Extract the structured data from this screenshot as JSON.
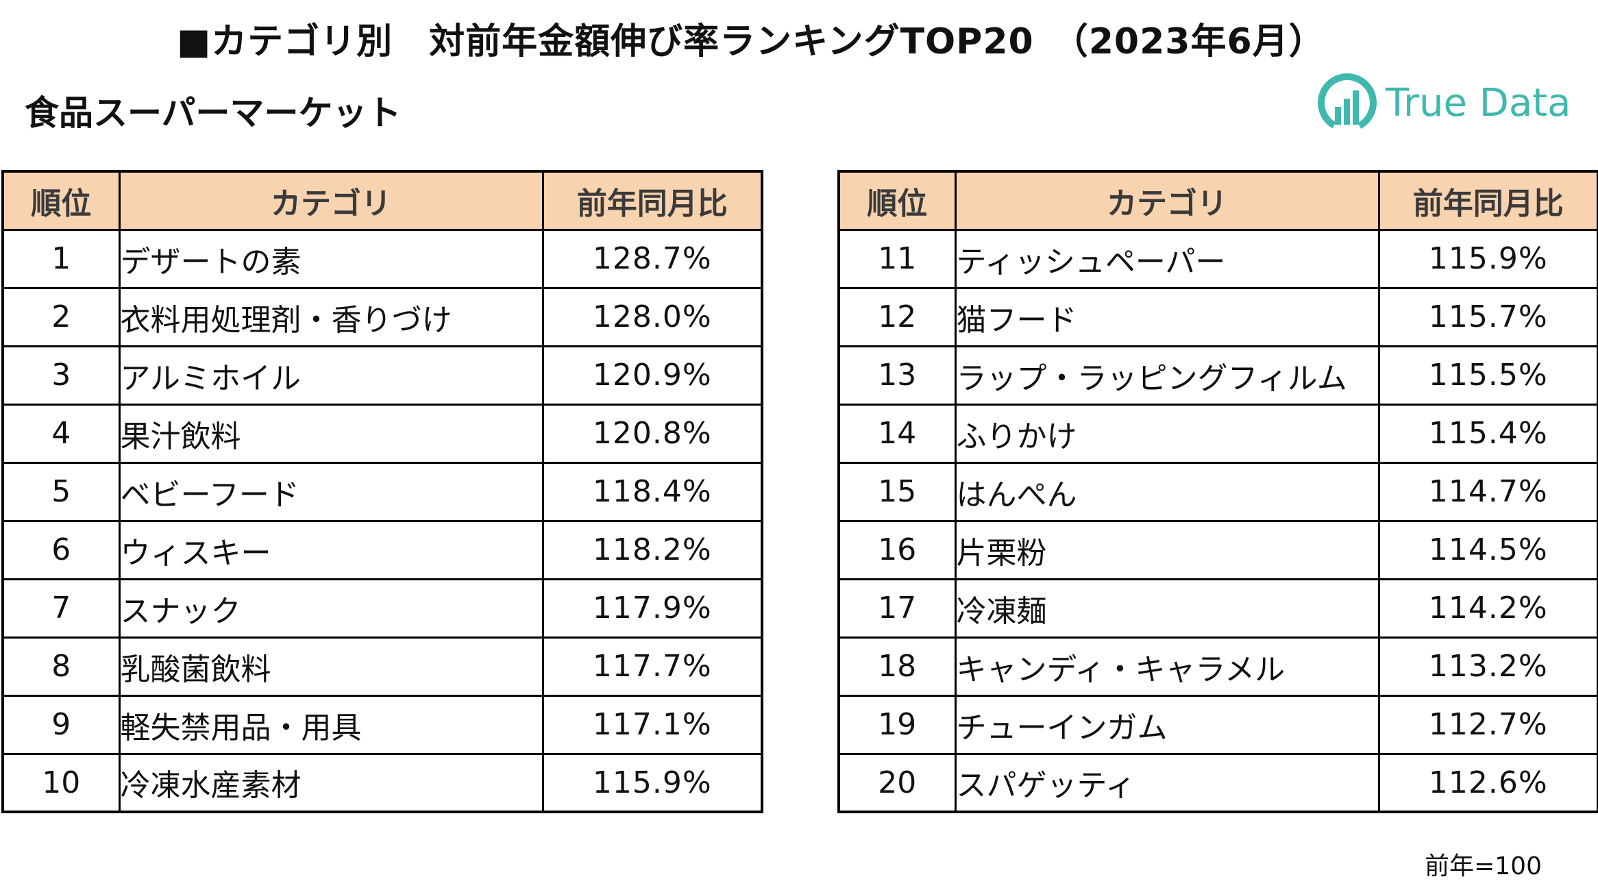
{
  "title": "■カテゴリ別　対前年金額伸び率ランキングTOP20　（2023年6月）",
  "subtitle": "食品スーパーマーケット",
  "logo_text": "True Data",
  "logo_color": "#3fb8ad",
  "header_color": "#f7d3b0",
  "columns": {
    "rank": "順位",
    "category": "カテゴリ",
    "rate": "前年同月比"
  },
  "left_rows": [
    {
      "rank": "1",
      "category": "デザートの素",
      "rate": "128.7%"
    },
    {
      "rank": "2",
      "category": "衣料用処理剤・香りづけ",
      "rate": "128.0%"
    },
    {
      "rank": "3",
      "category": "アルミホイル",
      "rate": "120.9%"
    },
    {
      "rank": "4",
      "category": "果汁飲料",
      "rate": "120.8%"
    },
    {
      "rank": "5",
      "category": "ベビーフード",
      "rate": "118.4%"
    },
    {
      "rank": "6",
      "category": "ウィスキー",
      "rate": "118.2%"
    },
    {
      "rank": "7",
      "category": "スナック",
      "rate": "117.9%"
    },
    {
      "rank": "8",
      "category": "乳酸菌飲料",
      "rate": "117.7%"
    },
    {
      "rank": "9",
      "category": "軽失禁用品・用具",
      "rate": "117.1%"
    },
    {
      "rank": "10",
      "category": "冷凍水産素材",
      "rate": "115.9%"
    }
  ],
  "right_rows": [
    {
      "rank": "11",
      "category": "ティッシュペーパー",
      "rate": "115.9%"
    },
    {
      "rank": "12",
      "category": "猫フード",
      "rate": "115.7%"
    },
    {
      "rank": "13",
      "category": "ラップ・ラッピングフィルム",
      "rate": "115.5%"
    },
    {
      "rank": "14",
      "category": "ふりかけ",
      "rate": "115.4%"
    },
    {
      "rank": "15",
      "category": "はんぺん",
      "rate": "114.7%"
    },
    {
      "rank": "16",
      "category": "片栗粉",
      "rate": "114.5%"
    },
    {
      "rank": "17",
      "category": "冷凍麺",
      "rate": "114.2%"
    },
    {
      "rank": "18",
      "category": "キャンディ・キャラメル",
      "rate": "113.2%"
    },
    {
      "rank": "19",
      "category": "チューインガム",
      "rate": "112.7%"
    },
    {
      "rank": "20",
      "category": "スパゲッティ",
      "rate": "112.6%"
    }
  ],
  "note": "前年=100"
}
